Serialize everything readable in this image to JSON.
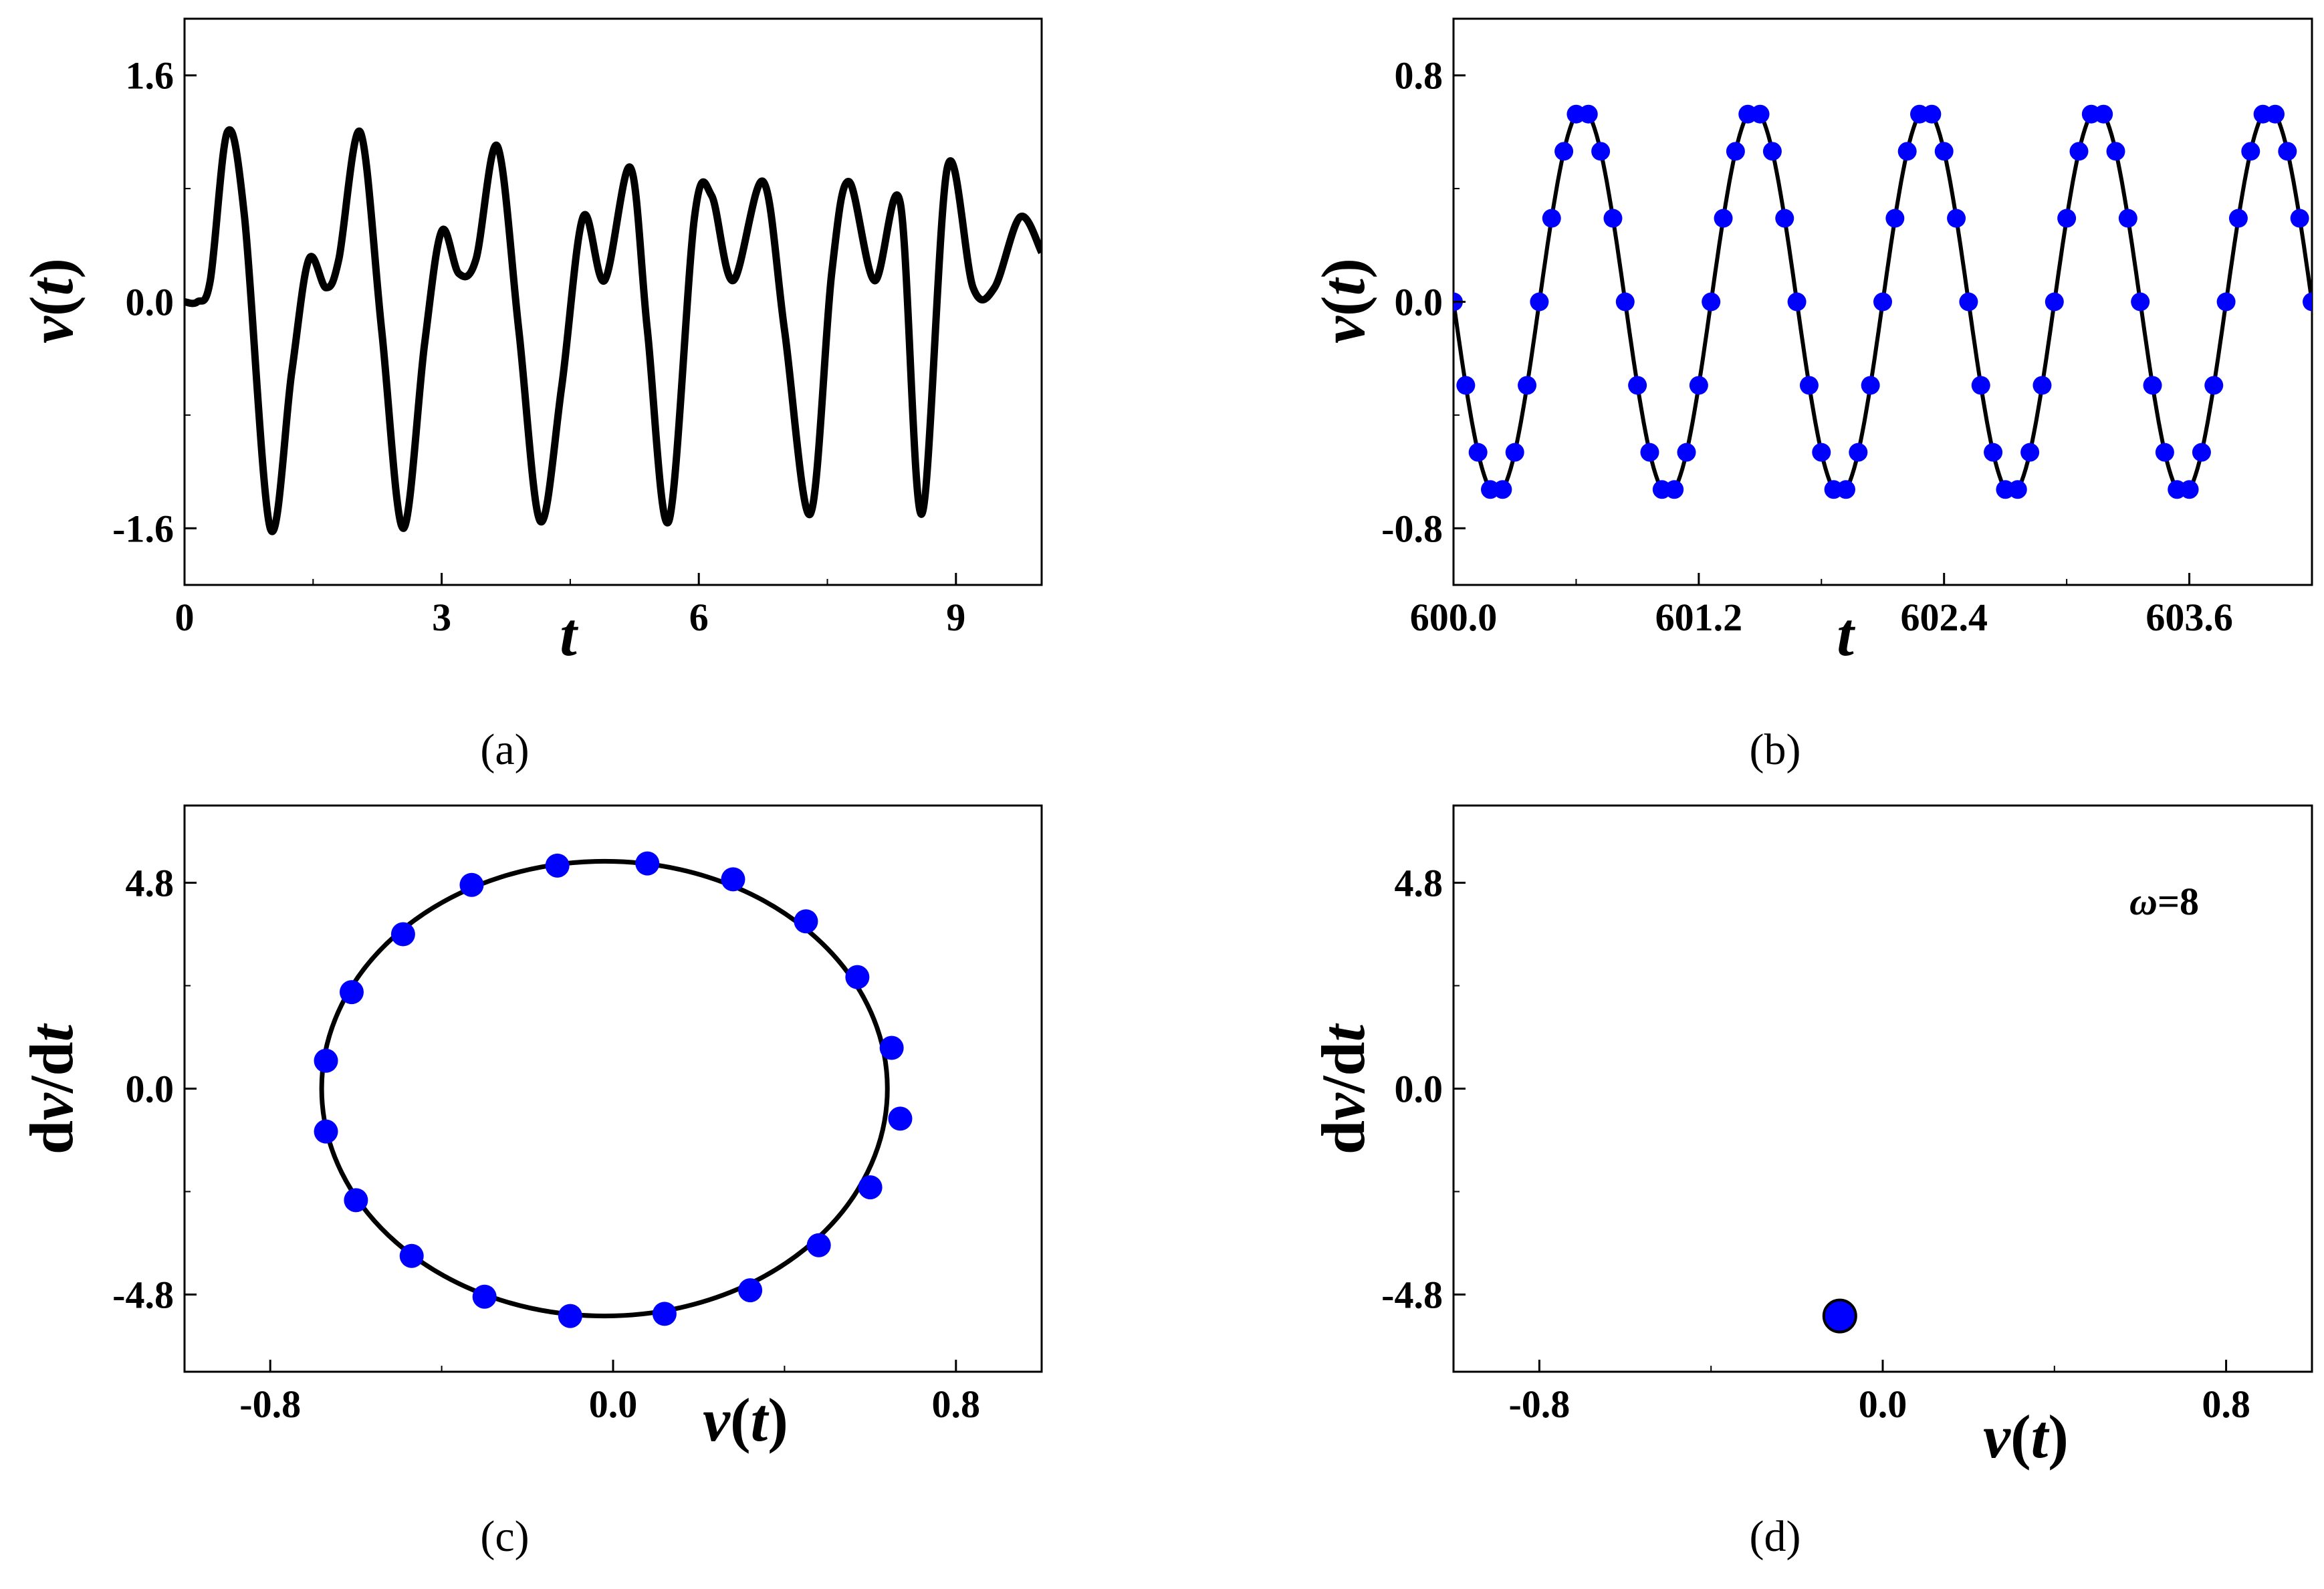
{
  "chart_data": [
    {
      "panel": "(a)",
      "type": "line",
      "xlabel_parts": [
        {
          "t": "t",
          "italic": true
        }
      ],
      "ylabel_parts": [
        {
          "t": "v",
          "italic": true
        },
        {
          "t": "(",
          "italic": false
        },
        {
          "t": "t",
          "italic": true
        },
        {
          "t": ")",
          "italic": false
        }
      ],
      "xlim": [
        0,
        10
      ],
      "ylim": [
        -2.0,
        2.0
      ],
      "xticks": [
        0,
        3,
        6,
        9
      ],
      "xtick_labels": [
        "0",
        "3",
        "6",
        "9"
      ],
      "yticks": [
        -1.6,
        0.0,
        1.6
      ],
      "ytick_labels": [
        "-1.6",
        "0.0",
        "1.6"
      ],
      "grid": false,
      "series": [
        {
          "style": "solid-thick",
          "color": "#000000",
          "x": [
            0.0,
            0.15,
            0.3,
            0.5,
            0.7,
            1.0,
            1.25,
            1.45,
            1.65,
            1.8,
            2.05,
            2.3,
            2.55,
            2.8,
            3.0,
            3.2,
            3.4,
            3.65,
            3.9,
            4.15,
            4.4,
            4.65,
            4.9,
            5.2,
            5.4,
            5.65,
            5.95,
            6.15,
            6.4,
            6.75,
            7.0,
            7.3,
            7.55,
            7.75,
            8.05,
            8.35,
            8.6,
            8.9,
            9.2,
            9.45,
            9.75,
            10.0
          ],
          "y": [
            0.0,
            0.0,
            0.15,
            1.2,
            0.6,
            -1.6,
            -0.5,
            0.3,
            0.1,
            0.3,
            1.2,
            -0.2,
            -1.6,
            -0.3,
            0.5,
            0.2,
            0.3,
            1.1,
            -0.2,
            -1.55,
            -0.6,
            0.6,
            0.15,
            0.95,
            -0.2,
            -1.55,
            0.6,
            0.75,
            0.15,
            0.85,
            -0.2,
            -1.5,
            0.2,
            0.85,
            0.15,
            0.7,
            -1.5,
            0.95,
            0.1,
            0.1,
            0.6,
            0.35
          ]
        }
      ]
    },
    {
      "panel": "(b)",
      "type": "line",
      "xlabel_parts": [
        {
          "t": "t",
          "italic": true
        }
      ],
      "ylabel_parts": [
        {
          "t": "v",
          "italic": true
        },
        {
          "t": "(",
          "italic": false
        },
        {
          "t": "t",
          "italic": true
        },
        {
          "t": ")",
          "italic": false
        }
      ],
      "xlim": [
        600.0,
        604.2
      ],
      "ylim": [
        -1.0,
        1.0
      ],
      "xticks": [
        600.0,
        601.2,
        602.4,
        603.6
      ],
      "xtick_labels": [
        "600.0",
        "601.2",
        "602.4",
        "603.6"
      ],
      "yticks": [
        -0.8,
        0.0,
        0.8
      ],
      "ytick_labels": [
        "-0.8",
        "0.0",
        "0.8"
      ],
      "grid": false,
      "series": [
        {
          "style": "sine-line",
          "color": "#000000",
          "amplitude": 0.68,
          "period": 0.84,
          "t0": 600.0,
          "peak_at": 600.63
        },
        {
          "style": "sine-markers",
          "color": "#0000ff",
          "amplitude": 0.68,
          "period": 0.84,
          "t0": 600.0,
          "peak_at": 600.63,
          "dt": 0.06
        }
      ]
    },
    {
      "panel": "(c)",
      "type": "scatter",
      "xlabel_parts": [
        {
          "t": "v",
          "italic": true
        },
        {
          "t": "(",
          "italic": false
        },
        {
          "t": "t",
          "italic": true
        },
        {
          "t": ")",
          "italic": false
        }
      ],
      "ylabel_parts": [
        {
          "t": "d",
          "italic": false
        },
        {
          "t": "v",
          "italic": true
        },
        {
          "t": "/d",
          "italic": false
        },
        {
          "t": "t",
          "italic": true
        }
      ],
      "xlim": [
        -1.0,
        1.0
      ],
      "ylim": [
        -6.6,
        6.6
      ],
      "xticks": [
        -0.8,
        0.0,
        0.8
      ],
      "xtick_labels": [
        "-0.8",
        "0.0",
        "0.8"
      ],
      "yticks": [
        -4.8,
        0.0,
        4.8
      ],
      "ytick_labels": [
        "-4.8",
        "0.0",
        "4.8"
      ],
      "grid": false,
      "series": [
        {
          "style": "ellipse",
          "color": "#000000",
          "cx": -0.02,
          "cy": 0.0,
          "rx": 0.66,
          "ry": 5.3
        },
        {
          "style": "markers",
          "color": "#0000ff",
          "x": [
            -0.13,
            0.08,
            0.28,
            0.45,
            0.57,
            0.65,
            0.67,
            0.6,
            0.48,
            0.32,
            0.12,
            -0.1,
            -0.3,
            -0.47,
            -0.6,
            -0.67,
            -0.67,
            -0.61,
            -0.49,
            -0.33
          ],
          "y": [
            5.2,
            5.25,
            4.88,
            3.9,
            2.6,
            0.95,
            -0.7,
            -2.3,
            -3.65,
            -4.7,
            -5.25,
            -5.3,
            -4.85,
            -3.9,
            -2.6,
            -1.0,
            0.65,
            2.25,
            3.6,
            4.75
          ]
        }
      ]
    },
    {
      "panel": "(d)",
      "type": "scatter",
      "xlabel_parts": [
        {
          "t": "v",
          "italic": true
        },
        {
          "t": "(",
          "italic": false
        },
        {
          "t": "t",
          "italic": true
        },
        {
          "t": ")",
          "italic": false
        }
      ],
      "ylabel_parts": [
        {
          "t": "d",
          "italic": false
        },
        {
          "t": "v",
          "italic": true
        },
        {
          "t": "/d",
          "italic": false
        },
        {
          "t": "t",
          "italic": true
        }
      ],
      "xlim": [
        -1.0,
        1.0
      ],
      "ylim": [
        -6.6,
        6.6
      ],
      "xticks": [
        -0.8,
        0.0,
        0.8
      ],
      "xtick_labels": [
        "-0.8",
        "0.0",
        "0.8"
      ],
      "yticks": [
        -4.8,
        0.0,
        4.8
      ],
      "ytick_labels": [
        "-4.8",
        "0.0",
        "4.8"
      ],
      "grid": false,
      "annotation_parts": [
        {
          "t": "ω",
          "italic": true
        },
        {
          "t": "=8",
          "italic": false
        }
      ],
      "series": [
        {
          "style": "markers-big",
          "color": "#0000ff",
          "x": [
            -0.1
          ],
          "y": [
            -5.3
          ]
        }
      ]
    }
  ]
}
